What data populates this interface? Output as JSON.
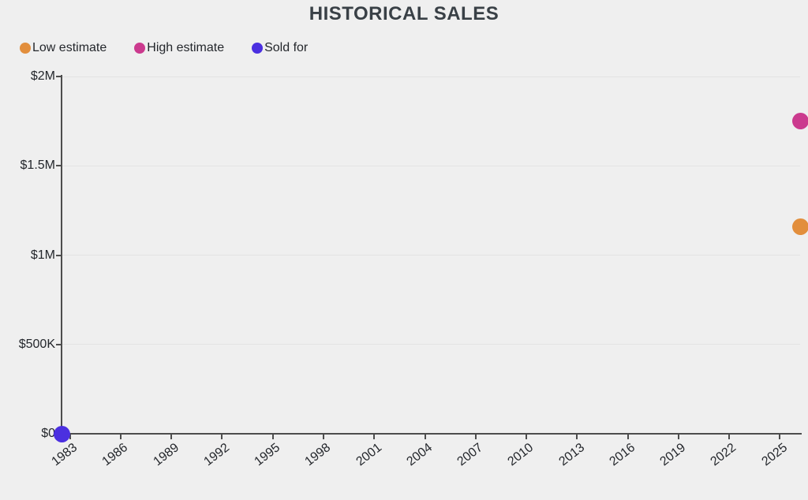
{
  "chart_data": {
    "type": "scatter",
    "title": "HISTORICAL SALES",
    "xlabel": "",
    "ylabel": "",
    "grid": "horizontal",
    "legend_position": "top-left",
    "x_range": [
      1982.5,
      2026.2
    ],
    "y_range": [
      0,
      2000000
    ],
    "x_ticks": [
      1983,
      1986,
      1989,
      1992,
      1995,
      1998,
      2001,
      2004,
      2007,
      2010,
      2013,
      2016,
      2019,
      2022,
      2025
    ],
    "y_ticks": [
      {
        "value": 0,
        "label": "$0"
      },
      {
        "value": 500000,
        "label": "$500K"
      },
      {
        "value": 1000000,
        "label": "$1M"
      },
      {
        "value": 1500000,
        "label": "$1.5M"
      },
      {
        "value": 2000000,
        "label": "$2M"
      }
    ],
    "series": [
      {
        "name": "Low estimate",
        "color": "#E28E3C",
        "points": [
          {
            "x": 2026.2,
            "y": 1160000
          }
        ]
      },
      {
        "name": "High estimate",
        "color": "#CB3A8E",
        "points": [
          {
            "x": 2026.2,
            "y": 1750000
          }
        ]
      },
      {
        "name": "Sold for",
        "color": "#4B30E0",
        "points": [
          {
            "x": 1982.5,
            "y": 0
          }
        ]
      }
    ],
    "colors": {
      "background": "#EFEFEF",
      "gridline": "#E3E3E3",
      "axis": "#4D4D4D",
      "title_text": "#394046",
      "tick_text": "#24272C"
    }
  }
}
